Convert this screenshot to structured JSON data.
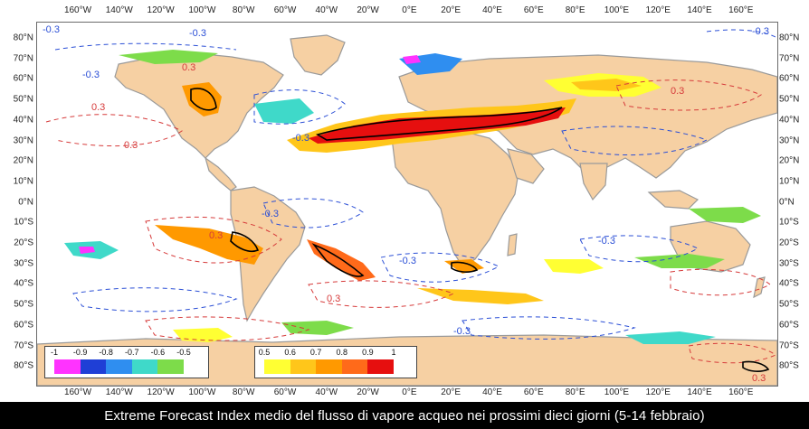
{
  "caption": "Extreme Forecast Index medio del flusso di vapore acqueo nei prossimi dieci giorni (5-14 febbraio)",
  "lon_labels_top": [
    "160°W",
    "140°W",
    "120°W",
    "100°W",
    "80°W",
    "60°W",
    "40°W",
    "20°W",
    "0°E",
    "20°E",
    "40°E",
    "60°E",
    "80°E",
    "100°E",
    "120°E",
    "140°E",
    "160°E"
  ],
  "lon_labels_bottom": [
    "160°W",
    "140°W",
    "120°W",
    "100°W",
    "80°W",
    "60°W",
    "40°W",
    "20°W",
    "0°E",
    "20°E",
    "40°E",
    "60°E",
    "80°E",
    "100°E",
    "120°E",
    "140°E",
    "160°E"
  ],
  "lat_labels": [
    "80°N",
    "70°N",
    "60°N",
    "50°N",
    "40°N",
    "30°N",
    "20°N",
    "10°N",
    "0°N",
    "10°S",
    "20°S",
    "30°S",
    "40°S",
    "50°S",
    "60°S",
    "70°S",
    "80°S"
  ],
  "legend_negative": {
    "ticks": [
      "-1",
      "-0.9",
      "-0.8",
      "-0.7",
      "-0.6",
      "-0.5"
    ],
    "colors": [
      "#ff33ff",
      "#1f3fd6",
      "#2f8ef0",
      "#3fd9c9",
      "#7ddc4a"
    ]
  },
  "legend_positive": {
    "ticks": [
      "0.5",
      "0.6",
      "0.7",
      "0.8",
      "0.9",
      "1"
    ],
    "colors": [
      "#ffff33",
      "#ffc61a",
      "#ff9900",
      "#ff6a1a",
      "#e60f0f"
    ]
  },
  "contour_labels": [
    {
      "text": "-0.3",
      "color": "#2b4fd6"
    },
    {
      "text": "-0.3",
      "color": "#2b4fd6"
    },
    {
      "text": "0.3",
      "color": "#d63a3a"
    },
    {
      "text": "-0.3",
      "color": "#2b4fd6"
    },
    {
      "text": "0.3",
      "color": "#d63a3a"
    },
    {
      "text": "-0.3",
      "color": "#2b4fd6"
    },
    {
      "text": "0.3",
      "color": "#d63a3a"
    },
    {
      "text": "-0.3",
      "color": "#2b4fd6"
    },
    {
      "text": "0.3",
      "color": "#d63a3a"
    },
    {
      "text": "-0.3",
      "color": "#2b4fd6"
    },
    {
      "text": "0.3",
      "color": "#d63a3a"
    },
    {
      "text": "-0.3",
      "color": "#2b4fd6"
    },
    {
      "text": "0.3",
      "color": "#d63a3a"
    },
    {
      "text": "-0.3",
      "color": "#2b4fd6"
    },
    {
      "text": "-0.3",
      "color": "#2b4fd6"
    },
    {
      "text": "0.3",
      "color": "#d63a3a"
    }
  ],
  "colors": {
    "land": "#f6d0a3",
    "ocean": "#ffffff",
    "coast": "#9a9a9a",
    "neg_contour": "#2b4fd6",
    "pos_contour": "#d63a3a"
  }
}
